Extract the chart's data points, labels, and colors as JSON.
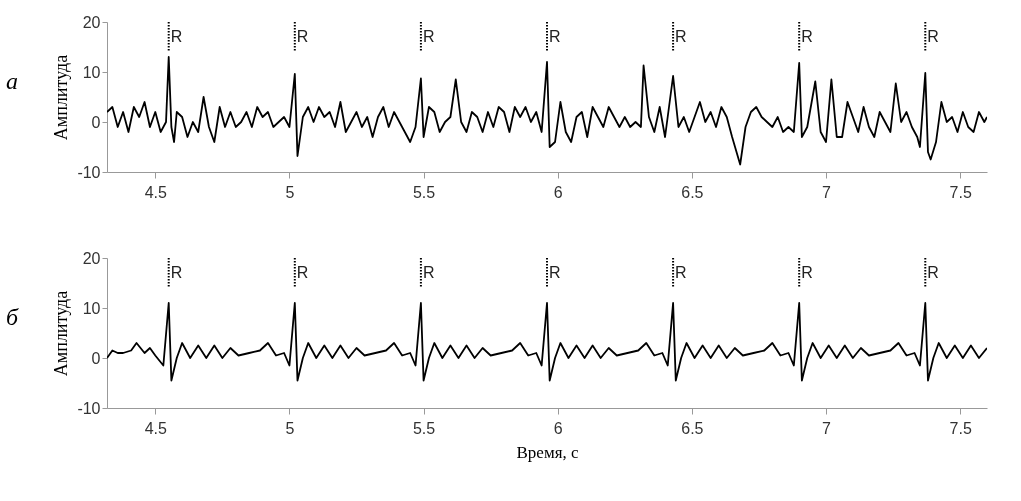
{
  "chart_data": [
    {
      "type": "line",
      "ylabel": "Амплитуда",
      "xlim": [
        4.32,
        7.6
      ],
      "ylim": [
        -10,
        20
      ],
      "xticks": [
        4.5,
        5,
        5.5,
        6,
        6.5,
        7,
        7.5
      ],
      "yticks": [
        -10,
        0,
        10,
        20
      ],
      "grid": false,
      "annotations": [
        "а"
      ],
      "ref_lines": [
        {
          "axis": "x",
          "value": 4.55,
          "label": "R",
          "line_style": "dotted"
        },
        {
          "axis": "x",
          "value": 5.02,
          "label": "R",
          "line_style": "dotted"
        },
        {
          "axis": "x",
          "value": 5.49,
          "label": "R",
          "line_style": "dotted"
        },
        {
          "axis": "x",
          "value": 5.96,
          "label": "R",
          "line_style": "dotted"
        },
        {
          "axis": "x",
          "value": 6.43,
          "label": "R",
          "line_style": "dotted"
        },
        {
          "axis": "x",
          "value": 6.9,
          "label": "R",
          "line_style": "dotted"
        },
        {
          "axis": "x",
          "value": 7.37,
          "label": "R",
          "line_style": "dotted"
        }
      ],
      "series": [
        {
          "color": "#000000",
          "x": [
            4.32,
            4.34,
            4.36,
            4.38,
            4.4,
            4.42,
            4.44,
            4.46,
            4.48,
            4.5,
            4.52,
            4.54,
            4.55,
            4.56,
            4.57,
            4.58,
            4.6,
            4.62,
            4.64,
            4.66,
            4.68,
            4.7,
            4.72,
            4.74,
            4.76,
            4.78,
            4.8,
            4.82,
            4.84,
            4.86,
            4.88,
            4.9,
            4.92,
            4.94,
            4.96,
            4.98,
            5.0,
            5.02,
            5.03,
            5.05,
            5.07,
            5.09,
            5.11,
            5.13,
            5.15,
            5.17,
            5.19,
            5.21,
            5.23,
            5.25,
            5.27,
            5.29,
            5.31,
            5.33,
            5.35,
            5.37,
            5.39,
            5.41,
            5.43,
            5.45,
            5.47,
            5.49,
            5.5,
            5.52,
            5.54,
            5.56,
            5.58,
            5.6,
            5.62,
            5.64,
            5.66,
            5.68,
            5.7,
            5.72,
            5.74,
            5.76,
            5.78,
            5.8,
            5.82,
            5.84,
            5.86,
            5.88,
            5.9,
            5.92,
            5.94,
            5.96,
            5.97,
            5.99,
            6.01,
            6.03,
            6.05,
            6.07,
            6.09,
            6.11,
            6.13,
            6.15,
            6.17,
            6.19,
            6.21,
            6.23,
            6.25,
            6.27,
            6.29,
            6.31,
            6.32,
            6.34,
            6.36,
            6.38,
            6.4,
            6.43,
            6.45,
            6.47,
            6.49,
            6.51,
            6.53,
            6.55,
            6.57,
            6.59,
            6.61,
            6.63,
            6.65,
            6.68,
            6.7,
            6.72,
            6.74,
            6.76,
            6.78,
            6.8,
            6.82,
            6.84,
            6.86,
            6.88,
            6.9,
            6.91,
            6.93,
            6.96,
            6.98,
            7.0,
            7.02,
            7.04,
            7.06,
            7.08,
            7.1,
            7.12,
            7.14,
            7.16,
            7.18,
            7.2,
            7.22,
            7.24,
            7.26,
            7.28,
            7.3,
            7.32,
            7.34,
            7.35,
            7.37,
            7.38,
            7.39,
            7.41,
            7.43,
            7.45,
            7.47,
            7.49,
            7.51,
            7.53,
            7.55,
            7.57,
            7.59,
            7.6
          ],
          "values": [
            2,
            3,
            -1,
            2,
            -2,
            3,
            1,
            4,
            -1,
            2,
            -2,
            0,
            13,
            -1,
            -4,
            2,
            1,
            -3,
            0,
            -2,
            5,
            -1,
            -4,
            3,
            -1,
            2,
            -1,
            0,
            2,
            -1,
            3,
            1,
            2,
            -1,
            0,
            1,
            -1,
            9.6,
            -6.8,
            1,
            3,
            0,
            3,
            1,
            2,
            -1,
            4,
            -2,
            0,
            2,
            -1,
            1,
            -3,
            1,
            3,
            -1,
            2,
            0,
            -2,
            -4,
            -1,
            8.7,
            -3,
            3,
            2,
            -2,
            0,
            1,
            8.5,
            0,
            -2,
            2,
            1,
            -2,
            2,
            -1,
            3,
            2,
            -2,
            3,
            1,
            3,
            0,
            2,
            -2,
            12,
            -5,
            -4,
            4,
            -2,
            -4,
            1,
            2,
            -3,
            3,
            1,
            -1,
            3,
            1,
            -1,
            1,
            -1,
            0,
            -1,
            11.3,
            1,
            -2,
            3,
            -3,
            9.2,
            -1,
            1,
            -2,
            1,
            4,
            0,
            2,
            -1,
            3,
            1,
            -3,
            -8.5,
            -1,
            2,
            3,
            1,
            0,
            -1,
            1,
            -2,
            -1,
            -2,
            11.8,
            -3,
            -1,
            8.1,
            -2,
            -4,
            8.5,
            -3,
            -3,
            4,
            1,
            -2,
            3,
            -1,
            -3,
            2,
            0,
            -2,
            7.7,
            0,
            2,
            -1,
            -3,
            -5,
            9.8,
            -6,
            -7.5,
            -4,
            4,
            0,
            1,
            -2,
            2,
            -1,
            -2,
            2,
            0,
            1
          ]
        }
      ]
    },
    {
      "type": "line",
      "ylabel": "Амплитуда",
      "xlabel": "Время, с",
      "xlim": [
        4.32,
        7.6
      ],
      "ylim": [
        -10,
        20
      ],
      "xticks": [
        4.5,
        5,
        5.5,
        6,
        6.5,
        7,
        7.5
      ],
      "yticks": [
        -10,
        0,
        10,
        20
      ],
      "grid": false,
      "annotations": [
        "б"
      ],
      "ref_lines": [
        {
          "axis": "x",
          "value": 4.55,
          "label": "R",
          "line_style": "dotted"
        },
        {
          "axis": "x",
          "value": 5.02,
          "label": "R",
          "line_style": "dotted"
        },
        {
          "axis": "x",
          "value": 5.49,
          "label": "R",
          "line_style": "dotted"
        },
        {
          "axis": "x",
          "value": 5.96,
          "label": "R",
          "line_style": "dotted"
        },
        {
          "axis": "x",
          "value": 6.43,
          "label": "R",
          "line_style": "dotted"
        },
        {
          "axis": "x",
          "value": 6.9,
          "label": "R",
          "line_style": "dotted"
        },
        {
          "axis": "x",
          "value": 7.37,
          "label": "R",
          "line_style": "dotted"
        }
      ],
      "series": [
        {
          "color": "#000000",
          "x": [
            4.32,
            4.34,
            4.36,
            4.38,
            4.41,
            4.43,
            4.46,
            4.48,
            4.5,
            4.53,
            4.55,
            4.56,
            4.58,
            4.6,
            4.63,
            4.66,
            4.69,
            4.72,
            4.75,
            4.78,
            4.81,
            4.85,
            4.89,
            4.92,
            4.95,
            4.98,
            5.0,
            5.02,
            5.03,
            5.05,
            5.07,
            5.1,
            5.13,
            5.16,
            5.19,
            5.22,
            5.25,
            5.28,
            5.32,
            5.36,
            5.39,
            5.42,
            5.45,
            5.47,
            5.49,
            5.5,
            5.52,
            5.54,
            5.57,
            5.6,
            5.63,
            5.66,
            5.69,
            5.72,
            5.75,
            5.79,
            5.83,
            5.86,
            5.89,
            5.92,
            5.94,
            5.96,
            5.97,
            5.99,
            6.01,
            6.04,
            6.07,
            6.1,
            6.13,
            6.16,
            6.19,
            6.22,
            6.26,
            6.3,
            6.33,
            6.36,
            6.39,
            6.41,
            6.43,
            6.44,
            6.46,
            6.48,
            6.51,
            6.54,
            6.57,
            6.6,
            6.63,
            6.66,
            6.69,
            6.73,
            6.77,
            6.8,
            6.83,
            6.86,
            6.88,
            6.9,
            6.91,
            6.93,
            6.95,
            6.98,
            7.01,
            7.04,
            7.07,
            7.1,
            7.13,
            7.16,
            7.2,
            7.24,
            7.27,
            7.3,
            7.33,
            7.35,
            7.37,
            7.38,
            7.4,
            7.42,
            7.45,
            7.48,
            7.51,
            7.54,
            7.57,
            7.6
          ],
          "values": [
            0,
            1.5,
            1,
            1,
            1.5,
            3,
            1,
            2,
            0.5,
            -1.5,
            11,
            -4.5,
            0,
            3,
            0,
            2.5,
            0,
            2.5,
            0,
            2,
            0.5,
            1,
            1.5,
            3,
            0.5,
            1,
            -1.5,
            11,
            -4.5,
            0,
            3,
            0,
            2.5,
            0,
            2.5,
            0,
            2,
            0.5,
            1,
            1.5,
            3,
            0.5,
            1,
            -1.5,
            11,
            -4.5,
            0,
            3,
            0,
            2.5,
            0,
            2.5,
            0,
            2,
            0.5,
            1,
            1.5,
            3,
            0.5,
            1,
            -1.5,
            11,
            -4.5,
            0,
            3,
            0,
            2.5,
            0,
            2.5,
            0,
            2,
            0.5,
            1,
            1.5,
            3,
            0.5,
            1,
            -1.5,
            11,
            -4.5,
            0,
            3,
            0,
            2.5,
            0,
            2.5,
            0,
            2,
            0.5,
            1,
            1.5,
            3,
            0.5,
            1,
            -1.5,
            11,
            -4.5,
            0,
            3,
            0,
            2.5,
            0,
            2.5,
            0,
            2,
            0.5,
            1,
            1.5,
            3,
            0.5,
            1,
            -1.5,
            11,
            -4.5,
            0,
            3,
            0,
            2.5,
            0,
            2.5,
            0,
            2
          ]
        }
      ]
    }
  ]
}
